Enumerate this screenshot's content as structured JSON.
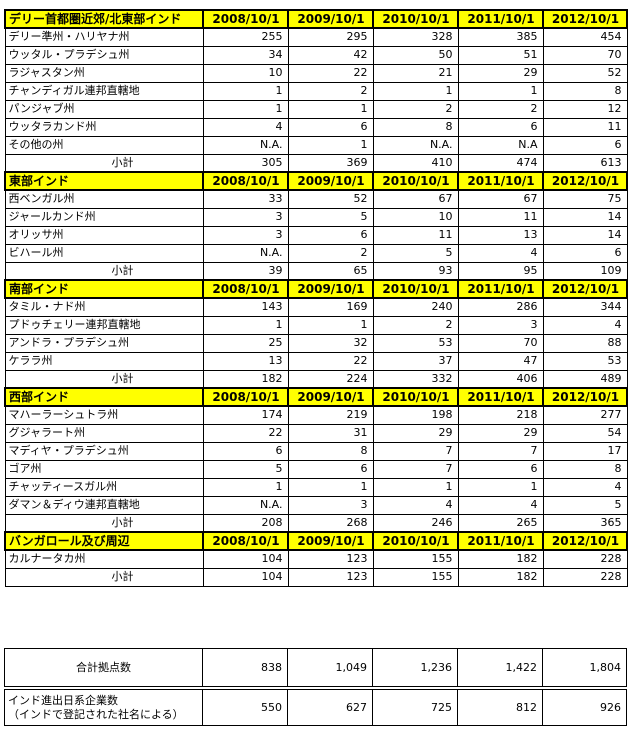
{
  "dates": [
    "2008/10/1",
    "2009/10/1",
    "2010/10/1",
    "2011/10/1",
    "2012/10/1"
  ],
  "subtotal_label": "小計",
  "sections": [
    {
      "title": "デリー首都圏近郊/北東部インド",
      "rows": [
        {
          "label": "デリー準州・ハリヤナ州",
          "values": [
            "255",
            "295",
            "328",
            "385",
            "454"
          ]
        },
        {
          "label": "ウッタル・プラデシュ州",
          "values": [
            "34",
            "42",
            "50",
            "51",
            "70"
          ]
        },
        {
          "label": "ラジャスタン州",
          "values": [
            "10",
            "22",
            "21",
            "29",
            "52"
          ]
        },
        {
          "label": "チャンディガル連邦直轄地",
          "values": [
            "1",
            "2",
            "1",
            "1",
            "8"
          ]
        },
        {
          "label": "パンジャブ州",
          "values": [
            "1",
            "1",
            "2",
            "2",
            "12"
          ]
        },
        {
          "label": "ウッタラカンド州",
          "values": [
            "4",
            "6",
            "8",
            "6",
            "11"
          ]
        },
        {
          "label": "その他の州",
          "values": [
            "N.A.",
            "1",
            "N.A.",
            "N.A",
            "6"
          ]
        }
      ],
      "subtotal": [
        "305",
        "369",
        "410",
        "474",
        "613"
      ]
    },
    {
      "title": "東部インド",
      "rows": [
        {
          "label": "西ベンガル州",
          "values": [
            "33",
            "52",
            "67",
            "67",
            "75"
          ]
        },
        {
          "label": "ジャールカンド州",
          "values": [
            "3",
            "5",
            "10",
            "11",
            "14"
          ]
        },
        {
          "label": "オリッサ州",
          "values": [
            "3",
            "6",
            "11",
            "13",
            "14"
          ]
        },
        {
          "label": "ビハール州",
          "values": [
            "N.A.",
            "2",
            "5",
            "4",
            "6"
          ]
        }
      ],
      "subtotal": [
        "39",
        "65",
        "93",
        "95",
        "109"
      ]
    },
    {
      "title": "南部インド",
      "rows": [
        {
          "label": "タミル・ナド州",
          "values": [
            "143",
            "169",
            "240",
            "286",
            "344"
          ]
        },
        {
          "label": "プドゥチェリー連邦直轄地",
          "values": [
            "1",
            "1",
            "2",
            "3",
            "4"
          ]
        },
        {
          "label": "アンドラ・プラデシュ州",
          "values": [
            "25",
            "32",
            "53",
            "70",
            "88"
          ]
        },
        {
          "label": "ケララ州",
          "values": [
            "13",
            "22",
            "37",
            "47",
            "53"
          ]
        }
      ],
      "subtotal": [
        "182",
        "224",
        "332",
        "406",
        "489"
      ]
    },
    {
      "title": "西部インド",
      "rows": [
        {
          "label": "マハーラーシュトラ州",
          "values": [
            "174",
            "219",
            "198",
            "218",
            "277"
          ]
        },
        {
          "label": "グジャラート州",
          "values": [
            "22",
            "31",
            "29",
            "29",
            "54"
          ]
        },
        {
          "label": "マディヤ・プラデシュ州",
          "values": [
            "6",
            "8",
            "7",
            "7",
            "17"
          ]
        },
        {
          "label": "ゴア州",
          "values": [
            "5",
            "6",
            "7",
            "6",
            "8"
          ]
        },
        {
          "label": "チャッティースガル州",
          "values": [
            "1",
            "1",
            "1",
            "1",
            "4"
          ]
        },
        {
          "label": "ダマン＆ディウ連邦直轄地",
          "values": [
            "N.A.",
            "3",
            "4",
            "4",
            "5"
          ]
        }
      ],
      "subtotal": [
        "208",
        "268",
        "246",
        "265",
        "365"
      ]
    },
    {
      "title": "バンガロール及び周辺",
      "rows": [
        {
          "label": "カルナータカ州",
          "values": [
            "104",
            "123",
            "155",
            "182",
            "228"
          ]
        }
      ],
      "subtotal": [
        "104",
        "123",
        "155",
        "182",
        "228"
      ]
    }
  ],
  "total": {
    "label": "合計拠点数",
    "values": [
      "838",
      "1,049",
      "1,236",
      "1,422",
      "1,804"
    ]
  },
  "companies": {
    "label_line1": "インド進出日系企業数",
    "label_line2": "（インドで登記された社名による）",
    "values": [
      "550",
      "627",
      "725",
      "812",
      "926"
    ]
  }
}
